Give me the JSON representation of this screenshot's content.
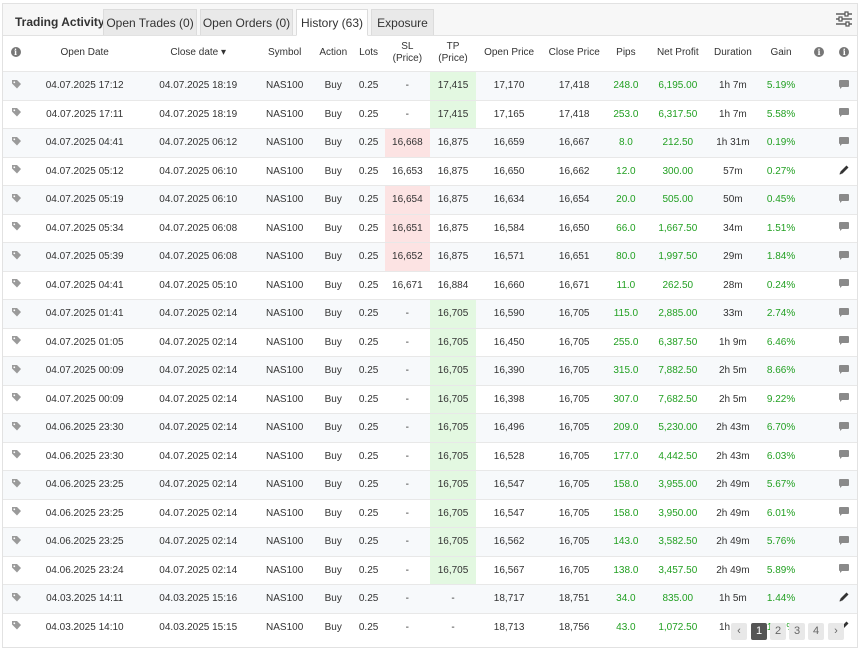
{
  "tabs": {
    "title": "Trading Activity",
    "open_trades": "Open Trades (0)",
    "open_orders": "Open Orders (0)",
    "history": "History (63)",
    "exposure": "Exposure"
  },
  "headers": {
    "open_date": "Open Date",
    "close_date": "Close date",
    "sort_indicator": "▾",
    "symbol": "Symbol",
    "action": "Action",
    "lots": "Lots",
    "sl_line1": "SL",
    "sl_line2": "(Price)",
    "tp_line1": "TP",
    "tp_line2": "(Price)",
    "open_price": "Open Price",
    "close_price": "Close Price",
    "pips": "Pips",
    "net_profit": "Net Profit",
    "duration": "Duration",
    "gain": "Gain"
  },
  "colors": {
    "positive": "#22a022",
    "sl_hit": "#fce3e3",
    "tp_hit": "#e3f8e1"
  },
  "rows": [
    {
      "open": "04.07.2025 17:12",
      "close": "04.07.2025 18:19",
      "symbol": "NAS100",
      "action": "Buy",
      "lots": "0.25",
      "sl": "-",
      "tp": "17,415",
      "open_price": "17,170",
      "close_price": "17,418",
      "pips": "248.0",
      "profit": "6,195.00",
      "duration": "1h 7m",
      "gain": "5.19%",
      "sl_hit": false,
      "tp_hit": true,
      "row_icon": "comment-icon"
    },
    {
      "open": "04.07.2025 17:11",
      "close": "04.07.2025 18:19",
      "symbol": "NAS100",
      "action": "Buy",
      "lots": "0.25",
      "sl": "-",
      "tp": "17,415",
      "open_price": "17,165",
      "close_price": "17,418",
      "pips": "253.0",
      "profit": "6,317.50",
      "duration": "1h 7m",
      "gain": "5.58%",
      "sl_hit": false,
      "tp_hit": true,
      "row_icon": "comment-icon"
    },
    {
      "open": "04.07.2025 04:41",
      "close": "04.07.2025 06:12",
      "symbol": "NAS100",
      "action": "Buy",
      "lots": "0.25",
      "sl": "16,668",
      "tp": "16,875",
      "open_price": "16,659",
      "close_price": "16,667",
      "pips": "8.0",
      "profit": "212.50",
      "duration": "1h 31m",
      "gain": "0.19%",
      "sl_hit": true,
      "tp_hit": false,
      "row_icon": "comment-icon"
    },
    {
      "open": "04.07.2025 05:12",
      "close": "04.07.2025 06:10",
      "symbol": "NAS100",
      "action": "Buy",
      "lots": "0.25",
      "sl": "16,653",
      "tp": "16,875",
      "open_price": "16,650",
      "close_price": "16,662",
      "pips": "12.0",
      "profit": "300.00",
      "duration": "57m",
      "gain": "0.27%",
      "sl_hit": false,
      "tp_hit": false,
      "row_icon": "pencil-icon"
    },
    {
      "open": "04.07.2025 05:19",
      "close": "04.07.2025 06:10",
      "symbol": "NAS100",
      "action": "Buy",
      "lots": "0.25",
      "sl": "16,654",
      "tp": "16,875",
      "open_price": "16,634",
      "close_price": "16,654",
      "pips": "20.0",
      "profit": "505.00",
      "duration": "50m",
      "gain": "0.45%",
      "sl_hit": true,
      "tp_hit": false,
      "row_icon": "comment-icon"
    },
    {
      "open": "04.07.2025 05:34",
      "close": "04.07.2025 06:08",
      "symbol": "NAS100",
      "action": "Buy",
      "lots": "0.25",
      "sl": "16,651",
      "tp": "16,875",
      "open_price": "16,584",
      "close_price": "16,650",
      "pips": "66.0",
      "profit": "1,667.50",
      "duration": "34m",
      "gain": "1.51%",
      "sl_hit": true,
      "tp_hit": false,
      "row_icon": "comment-icon"
    },
    {
      "open": "04.07.2025 05:39",
      "close": "04.07.2025 06:08",
      "symbol": "NAS100",
      "action": "Buy",
      "lots": "0.25",
      "sl": "16,652",
      "tp": "16,875",
      "open_price": "16,571",
      "close_price": "16,651",
      "pips": "80.0",
      "profit": "1,997.50",
      "duration": "29m",
      "gain": "1.84%",
      "sl_hit": true,
      "tp_hit": false,
      "row_icon": "comment-icon"
    },
    {
      "open": "04.07.2025 04:41",
      "close": "04.07.2025 05:10",
      "symbol": "NAS100",
      "action": "Buy",
      "lots": "0.25",
      "sl": "16,671",
      "tp": "16,884",
      "open_price": "16,660",
      "close_price": "16,671",
      "pips": "11.0",
      "profit": "262.50",
      "duration": "28m",
      "gain": "0.24%",
      "sl_hit": false,
      "tp_hit": false,
      "row_icon": "comment-icon"
    },
    {
      "open": "04.07.2025 01:41",
      "close": "04.07.2025 02:14",
      "symbol": "NAS100",
      "action": "Buy",
      "lots": "0.25",
      "sl": "-",
      "tp": "16,705",
      "open_price": "16,590",
      "close_price": "16,705",
      "pips": "115.0",
      "profit": "2,885.00",
      "duration": "33m",
      "gain": "2.74%",
      "sl_hit": false,
      "tp_hit": true,
      "row_icon": "comment-icon"
    },
    {
      "open": "04.07.2025 01:05",
      "close": "04.07.2025 02:14",
      "symbol": "NAS100",
      "action": "Buy",
      "lots": "0.25",
      "sl": "-",
      "tp": "16,705",
      "open_price": "16,450",
      "close_price": "16,705",
      "pips": "255.0",
      "profit": "6,387.50",
      "duration": "1h 9m",
      "gain": "6.46%",
      "sl_hit": false,
      "tp_hit": true,
      "row_icon": "comment-icon"
    },
    {
      "open": "04.07.2025 00:09",
      "close": "04.07.2025 02:14",
      "symbol": "NAS100",
      "action": "Buy",
      "lots": "0.25",
      "sl": "-",
      "tp": "16,705",
      "open_price": "16,390",
      "close_price": "16,705",
      "pips": "315.0",
      "profit": "7,882.50",
      "duration": "2h 5m",
      "gain": "8.66%",
      "sl_hit": false,
      "tp_hit": true,
      "row_icon": "comment-icon"
    },
    {
      "open": "04.07.2025 00:09",
      "close": "04.07.2025 02:14",
      "symbol": "NAS100",
      "action": "Buy",
      "lots": "0.25",
      "sl": "-",
      "tp": "16,705",
      "open_price": "16,398",
      "close_price": "16,705",
      "pips": "307.0",
      "profit": "7,682.50",
      "duration": "2h 5m",
      "gain": "9.22%",
      "sl_hit": false,
      "tp_hit": true,
      "row_icon": "comment-icon"
    },
    {
      "open": "04.06.2025 23:30",
      "close": "04.07.2025 02:14",
      "symbol": "NAS100",
      "action": "Buy",
      "lots": "0.25",
      "sl": "-",
      "tp": "16,705",
      "open_price": "16,496",
      "close_price": "16,705",
      "pips": "209.0",
      "profit": "5,230.00",
      "duration": "2h 43m",
      "gain": "6.70%",
      "sl_hit": false,
      "tp_hit": true,
      "row_icon": "comment-icon"
    },
    {
      "open": "04.06.2025 23:30",
      "close": "04.07.2025 02:14",
      "symbol": "NAS100",
      "action": "Buy",
      "lots": "0.25",
      "sl": "-",
      "tp": "16,705",
      "open_price": "16,528",
      "close_price": "16,705",
      "pips": "177.0",
      "profit": "4,442.50",
      "duration": "2h 43m",
      "gain": "6.03%",
      "sl_hit": false,
      "tp_hit": true,
      "row_icon": "comment-icon"
    },
    {
      "open": "04.06.2025 23:25",
      "close": "04.07.2025 02:14",
      "symbol": "NAS100",
      "action": "Buy",
      "lots": "0.25",
      "sl": "-",
      "tp": "16,705",
      "open_price": "16,547",
      "close_price": "16,705",
      "pips": "158.0",
      "profit": "3,955.00",
      "duration": "2h 49m",
      "gain": "5.67%",
      "sl_hit": false,
      "tp_hit": true,
      "row_icon": "comment-icon"
    },
    {
      "open": "04.06.2025 23:25",
      "close": "04.07.2025 02:14",
      "symbol": "NAS100",
      "action": "Buy",
      "lots": "0.25",
      "sl": "-",
      "tp": "16,705",
      "open_price": "16,547",
      "close_price": "16,705",
      "pips": "158.0",
      "profit": "3,950.00",
      "duration": "2h 49m",
      "gain": "6.01%",
      "sl_hit": false,
      "tp_hit": true,
      "row_icon": "comment-icon"
    },
    {
      "open": "04.06.2025 23:25",
      "close": "04.07.2025 02:14",
      "symbol": "NAS100",
      "action": "Buy",
      "lots": "0.25",
      "sl": "-",
      "tp": "16,705",
      "open_price": "16,562",
      "close_price": "16,705",
      "pips": "143.0",
      "profit": "3,582.50",
      "duration": "2h 49m",
      "gain": "5.76%",
      "sl_hit": false,
      "tp_hit": true,
      "row_icon": "comment-icon"
    },
    {
      "open": "04.06.2025 23:24",
      "close": "04.07.2025 02:14",
      "symbol": "NAS100",
      "action": "Buy",
      "lots": "0.25",
      "sl": "-",
      "tp": "16,705",
      "open_price": "16,567",
      "close_price": "16,705",
      "pips": "138.0",
      "profit": "3,457.50",
      "duration": "2h 49m",
      "gain": "5.89%",
      "sl_hit": false,
      "tp_hit": true,
      "row_icon": "comment-icon"
    },
    {
      "open": "04.03.2025 14:11",
      "close": "04.03.2025 15:16",
      "symbol": "NAS100",
      "action": "Buy",
      "lots": "0.25",
      "sl": "-",
      "tp": "-",
      "open_price": "18,717",
      "close_price": "18,751",
      "pips": "34.0",
      "profit": "835.00",
      "duration": "1h 5m",
      "gain": "1.44%",
      "sl_hit": false,
      "tp_hit": false,
      "row_icon": "pencil-icon"
    },
    {
      "open": "04.03.2025 14:10",
      "close": "04.03.2025 15:15",
      "symbol": "NAS100",
      "action": "Buy",
      "lots": "0.25",
      "sl": "-",
      "tp": "-",
      "open_price": "18,713",
      "close_price": "18,756",
      "pips": "43.0",
      "profit": "1,072.50",
      "duration": "1h 4m",
      "gain": "1.89%",
      "sl_hit": false,
      "tp_hit": false,
      "row_icon": "pencil-icon"
    }
  ],
  "pagination": {
    "prev": "‹",
    "pages": [
      "1",
      "2",
      "3",
      "4"
    ],
    "current": "1",
    "next": "›"
  }
}
